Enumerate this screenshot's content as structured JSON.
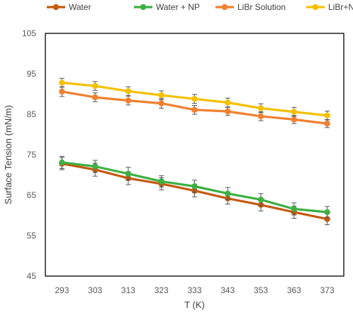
{
  "chart_data": {
    "type": "line",
    "title": "",
    "xlabel": "T (K)",
    "ylabel": "Surface Tension (mN/m)",
    "categories": [
      "293",
      "303",
      "313",
      "323",
      "333",
      "343",
      "353",
      "363",
      "373"
    ],
    "yticks": [
      "45",
      "55",
      "65",
      "75",
      "85",
      "95",
      "105"
    ],
    "ylim": [
      45,
      105
    ],
    "grid": false,
    "legend_position": "top",
    "series": [
      {
        "name": "Water",
        "color": "#C55A11",
        "values": [
          72.8,
          71.3,
          69.2,
          67.8,
          66.1,
          64.2,
          62.6,
          60.8,
          59.1
        ],
        "errors": [
          1.5,
          1.6,
          1.6,
          1.5,
          1.5,
          1.4,
          1.5,
          1.5,
          1.4
        ]
      },
      {
        "name": "Water + NP",
        "color": "#3CB043",
        "values": [
          73.1,
          72.1,
          70.3,
          68.4,
          67.2,
          65.4,
          63.9,
          61.6,
          60.8
        ],
        "errors": [
          1.5,
          1.5,
          1.6,
          1.4,
          1.5,
          1.5,
          1.5,
          1.5,
          1.4
        ]
      },
      {
        "name": "LiBr Solution",
        "color": "#F08030",
        "values": [
          90.6,
          89.2,
          88.4,
          87.7,
          86.1,
          85.7,
          84.5,
          83.7,
          82.7
        ],
        "errors": [
          1.2,
          1.1,
          1.1,
          1.2,
          1.1,
          1.0,
          1.1,
          1.0,
          1.0
        ]
      },
      {
        "name": "LiBr+NP",
        "color": "#F5C000",
        "values": [
          92.8,
          92.0,
          90.7,
          89.7,
          88.8,
          87.9,
          86.5,
          85.6,
          84.7
        ],
        "errors": [
          1.1,
          1.1,
          1.1,
          1.1,
          1.1,
          1.1,
          1.1,
          1.1,
          1.1
        ]
      }
    ]
  }
}
